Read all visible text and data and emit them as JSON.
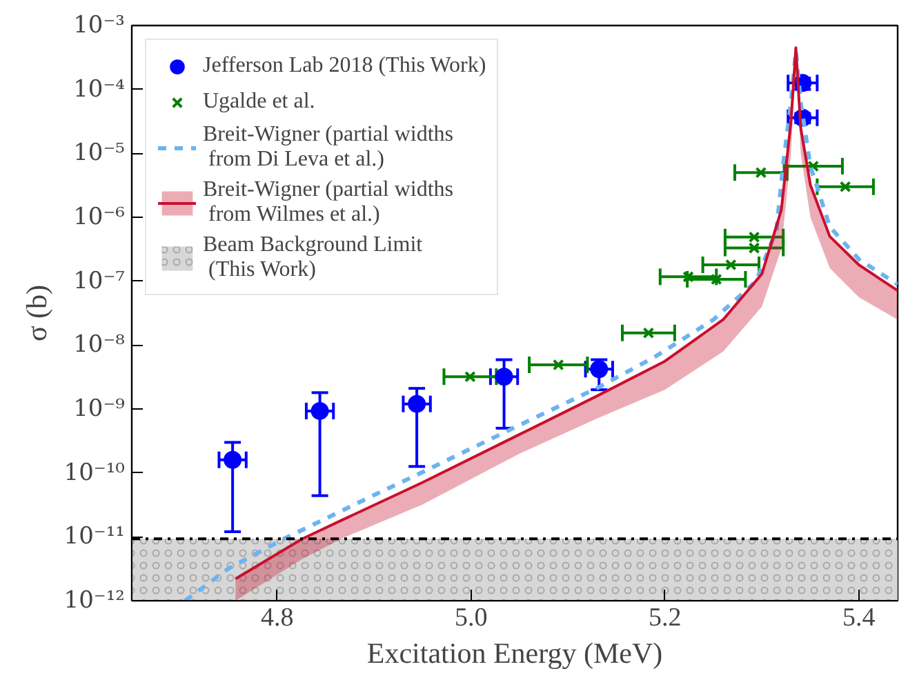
{
  "chart_data": {
    "type": "scatter",
    "xlabel": "Excitation Energy (MeV)",
    "ylabel": "σ (b)",
    "log": "y",
    "grid": false,
    "legend": "top left",
    "xlim": [
      4.65,
      5.44
    ],
    "xticks": [
      4.8,
      {
        "value": 5.0,
        "label": "5.0"
      },
      5.2,
      5.4
    ],
    "ylim": [
      1e-12,
      0.001
    ],
    "yticks": [
      {
        "value": 1e-12,
        "label": "10⁻¹²"
      },
      {
        "value": 1e-11,
        "label": "10⁻¹¹"
      },
      {
        "value": 1e-10,
        "label": "10⁻¹⁰"
      },
      {
        "value": 1e-09,
        "label": "10⁻⁹"
      },
      {
        "value": 1e-08,
        "label": "10⁻⁸"
      },
      {
        "value": 1e-07,
        "label": "10⁻⁷"
      },
      {
        "value": 1e-06,
        "label": "10⁻⁶"
      },
      {
        "value": 1e-05,
        "label": "10⁻⁵"
      },
      {
        "value": 0.0001,
        "label": "10⁻⁴"
      },
      {
        "value": 0.001,
        "label": "10⁻³"
      }
    ],
    "series": [
      {
        "name": "Jefferson Lab 2018 (This Work)",
        "marker": "circle",
        "color": "#0000ff",
        "x": [
          4.754,
          4.844,
          4.944,
          5.034,
          5.132,
          5.342,
          5.342
        ],
        "values": [
          1.6e-10,
          9.3e-10,
          1.2e-09,
          3.2e-09,
          4.2e-09,
          0.000126,
          3.6e-05
        ],
        "errors": [
          [
            1.2e-11,
            3e-10
          ],
          [
            4.4e-11,
            1.8e-09
          ],
          [
            1.26e-10,
            2.1e-09
          ],
          [
            5e-10,
            5.9e-09
          ],
          [
            2e-09,
            5.9e-09
          ],
          [
            0.0001,
            0.00015
          ],
          [
            3e-05,
            4.2e-05
          ]
        ],
        "xerrors": [
          0.014,
          0.014,
          0.014,
          0.014,
          0.014,
          0.015,
          0.015
        ]
      },
      {
        "name": "Ugalde et al.",
        "marker": "cross",
        "color": "#008000",
        "x": [
          4.999,
          5.09,
          5.183,
          5.224,
          5.253,
          5.268,
          5.292,
          5.292,
          5.299,
          5.353,
          5.386
        ],
        "values": [
          3.2e-09,
          4.9e-09,
          1.55e-08,
          1.17e-07,
          1.07e-07,
          1.8e-07,
          3.3e-07,
          4.9e-07,
          5e-06,
          6.3e-06,
          3e-06
        ],
        "xerrors": [
          0.027,
          0.03,
          0.027,
          0.029,
          0.03,
          0.029,
          0.03,
          0.03,
          0.027,
          0.03,
          0.029
        ]
      },
      {
        "name": "Breit-Wigner (partial widths\n from Di Leva et al.)",
        "type": "line",
        "line_style": "dashed",
        "color": "#6cb4f0",
        "x": [
          4.705,
          4.75,
          4.807,
          4.9,
          4.944,
          5.05,
          5.132,
          5.19,
          5.25,
          5.294,
          5.315,
          5.322,
          5.33,
          5.335,
          5.34,
          5.35,
          5.37,
          5.4,
          5.44
        ],
        "values": [
          1e-12,
          3.2e-12,
          9.3e-12,
          4.5e-11,
          9.3e-11,
          5.6e-10,
          2.2e-09,
          6.6e-09,
          2.5e-08,
          1e-07,
          6.3e-07,
          6.9e-06,
          6.3e-05,
          0.0004,
          6.3e-05,
          6.3e-06,
          7.1e-07,
          2.2e-07,
          8.9e-08
        ]
      },
      {
        "name": "Breit-Wigner (partial widths\n from Wilmes et al.)",
        "type": "line",
        "line_style": "solid",
        "color": "#c8102e",
        "x": [
          4.757,
          4.826,
          4.866,
          4.95,
          5.05,
          5.13,
          5.2,
          5.26,
          5.3,
          5.32,
          5.33,
          5.335,
          5.34,
          5.35,
          5.37,
          5.4,
          5.44
        ],
        "values": [
          2.2e-12,
          9.3e-12,
          1.8e-11,
          7.1e-11,
          4e-10,
          1.6e-09,
          5.6e-09,
          2.5e-08,
          1.3e-07,
          1.3e-06,
          3.2e-05,
          0.00045,
          2.5e-05,
          3.2e-06,
          5e-07,
          1.8e-07,
          7.1e-08
        ],
        "upper": [
          2.2e-12,
          9.3e-12,
          1.8e-11,
          7.1e-11,
          4e-10,
          1.6e-09,
          5.6e-09,
          2.5e-08,
          1.3e-07,
          1.3e-06,
          3.2e-05,
          0.00045,
          2.5e-05,
          3.2e-06,
          5e-07,
          1.8e-07,
          7.1e-08
        ],
        "lower": [
          1e-12,
          4.5e-12,
          9.3e-12,
          3.2e-11,
          2e-10,
          7.1e-10,
          2e-09,
          7.9e-09,
          4e-08,
          3.2e-07,
          1e-05,
          0.00032,
          1e-05,
          1e-06,
          1.6e-07,
          5.6e-08,
          2.5e-08
        ]
      }
    ],
    "bands": [
      {
        "axis": "y",
        "from": 1e-12,
        "to": 9.3e-12,
        "label": "Beam Background Limit\n (This Work)",
        "color": "#d3d3d3"
      }
    ],
    "ref_lines": [
      {
        "axis": "y",
        "value": 9.3e-12,
        "color": "#000000",
        "line_style": "dashdot"
      }
    ]
  }
}
